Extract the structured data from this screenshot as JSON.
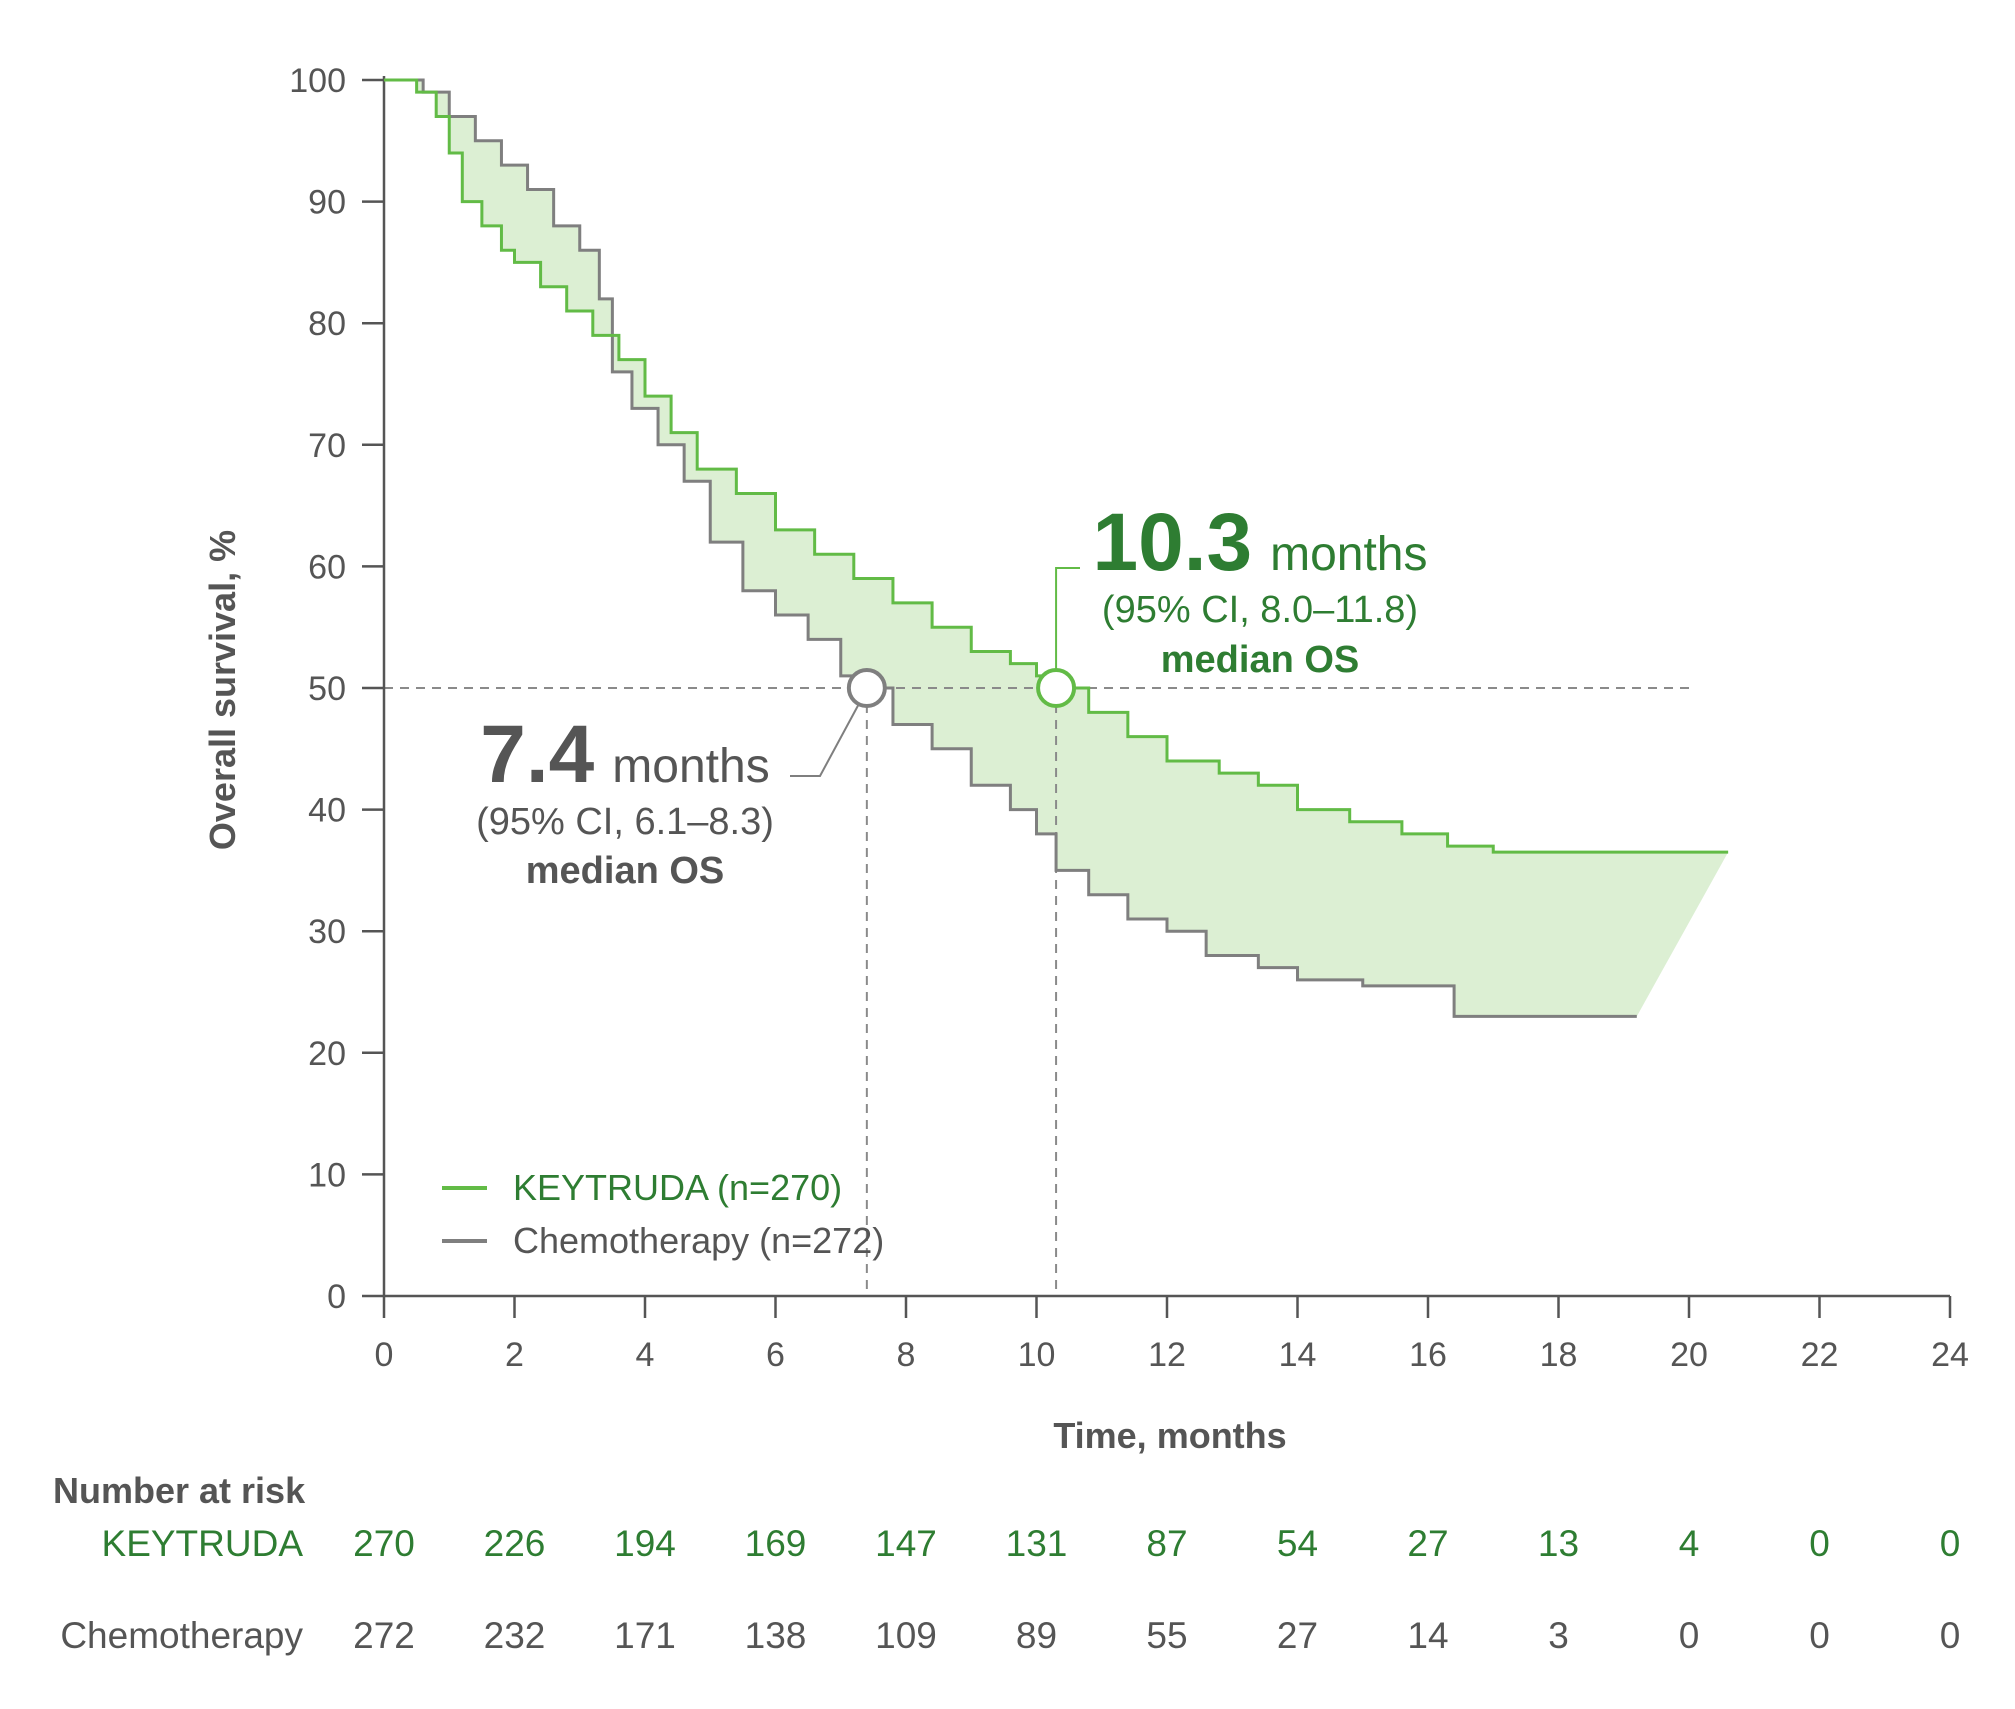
{
  "colors": {
    "keytruda": "#62bb46",
    "keytruda_text": "#2e7d32",
    "chemo": "#7f7f7f",
    "chemo_text": "#555555",
    "fill": "#dcefd3",
    "axis": "#555555"
  },
  "chart_data": {
    "type": "line",
    "subtype": "kaplan-meier",
    "ylabel": "Overall survival, %",
    "xlabel": "Time, months",
    "xlim": [
      0,
      24
    ],
    "ylim": [
      0,
      100
    ],
    "x_ticks": [
      "0",
      "2",
      "4",
      "6",
      "8",
      "10",
      "12",
      "14",
      "16",
      "18",
      "20",
      "22",
      "24"
    ],
    "y_ticks": [
      "0",
      "10",
      "20",
      "30",
      "40",
      "50",
      "60",
      "70",
      "80",
      "90",
      "100"
    ],
    "reference_line_y": 50,
    "legend_position": "bottom-left",
    "series": [
      {
        "name": "KEYTRUDA (n=270)",
        "key": "keytruda",
        "points": [
          [
            0,
            100
          ],
          [
            0.5,
            99
          ],
          [
            0.8,
            97
          ],
          [
            1.0,
            94
          ],
          [
            1.2,
            90
          ],
          [
            1.5,
            88
          ],
          [
            1.8,
            86
          ],
          [
            2.0,
            85
          ],
          [
            2.4,
            83
          ],
          [
            2.8,
            81
          ],
          [
            3.2,
            79
          ],
          [
            3.6,
            77
          ],
          [
            4.0,
            74
          ],
          [
            4.4,
            71
          ],
          [
            4.8,
            68
          ],
          [
            5.4,
            66
          ],
          [
            6.0,
            63
          ],
          [
            6.6,
            61
          ],
          [
            7.2,
            59
          ],
          [
            7.8,
            57
          ],
          [
            8.4,
            55
          ],
          [
            9.0,
            53
          ],
          [
            9.6,
            52
          ],
          [
            10.0,
            51
          ],
          [
            10.3,
            50
          ],
          [
            10.8,
            48
          ],
          [
            11.4,
            46
          ],
          [
            12.0,
            44
          ],
          [
            12.8,
            43
          ],
          [
            13.4,
            42
          ],
          [
            14.0,
            40
          ],
          [
            14.8,
            39
          ],
          [
            15.6,
            38
          ],
          [
            16.3,
            37
          ],
          [
            17.0,
            36.5
          ],
          [
            20.6,
            36.5
          ]
        ]
      },
      {
        "name": "Chemotherapy (n=272)",
        "key": "chemo",
        "points": [
          [
            0,
            100
          ],
          [
            0.6,
            99
          ],
          [
            1.0,
            97
          ],
          [
            1.4,
            95
          ],
          [
            1.8,
            93
          ],
          [
            2.2,
            91
          ],
          [
            2.6,
            88
          ],
          [
            3.0,
            86
          ],
          [
            3.3,
            82
          ],
          [
            3.5,
            76
          ],
          [
            3.8,
            73
          ],
          [
            4.2,
            70
          ],
          [
            4.6,
            67
          ],
          [
            5.0,
            62
          ],
          [
            5.5,
            58
          ],
          [
            6.0,
            56
          ],
          [
            6.5,
            54
          ],
          [
            7.0,
            51
          ],
          [
            7.4,
            50
          ],
          [
            7.8,
            47
          ],
          [
            8.4,
            45
          ],
          [
            9.0,
            42
          ],
          [
            9.6,
            40
          ],
          [
            10.0,
            38
          ],
          [
            10.3,
            35
          ],
          [
            10.8,
            33
          ],
          [
            11.4,
            31
          ],
          [
            12.0,
            30
          ],
          [
            12.6,
            28
          ],
          [
            13.4,
            27
          ],
          [
            14.0,
            26
          ],
          [
            15.0,
            25.5
          ],
          [
            16.4,
            23
          ],
          [
            19.2,
            23
          ]
        ]
      }
    ],
    "annotations": [
      {
        "series": "keytruda",
        "x": 10.3,
        "y": 50,
        "value": "10.3",
        "unit": "months",
        "ci": "(95% CI, 8.0–11.8)",
        "label": "median OS"
      },
      {
        "series": "chemo",
        "x": 7.4,
        "y": 50,
        "value": "7.4",
        "unit": "months",
        "ci": "(95% CI, 6.1–8.3)",
        "label": "median OS"
      }
    ]
  },
  "risk_table": {
    "title": "Number at risk",
    "rows": [
      {
        "label": "KEYTRUDA",
        "key": "keytruda",
        "values": [
          "270",
          "226",
          "194",
          "169",
          "147",
          "131",
          "87",
          "54",
          "27",
          "13",
          "4",
          "0",
          "0"
        ]
      },
      {
        "label": "Chemotherapy",
        "key": "chemo",
        "values": [
          "272",
          "232",
          "171",
          "138",
          "109",
          "89",
          "55",
          "27",
          "14",
          "3",
          "0",
          "0",
          "0"
        ]
      }
    ]
  }
}
